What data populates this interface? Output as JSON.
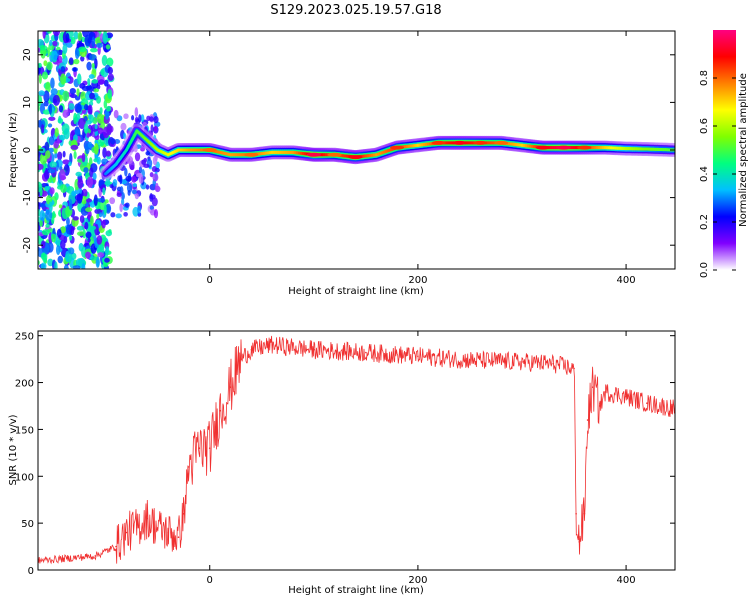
{
  "figure_title": "S129.2023.025.19.57.G18",
  "chart_data": [
    {
      "type": "heatmap",
      "title": "",
      "xlabel": "Height of straight line (km)",
      "ylabel": "Frequency (Hz)",
      "xlim": [
        -165,
        447
      ],
      "ylim": [
        -25,
        25
      ],
      "x_ticks": [
        0,
        200,
        400
      ],
      "y_ticks": [
        -20,
        -10,
        0,
        10,
        20
      ],
      "colorbar": {
        "label": "Normalized spectral amplitude",
        "range": [
          0,
          1
        ],
        "ticks": [
          0.0,
          0.2,
          0.4,
          0.6,
          0.8
        ],
        "colormap": [
          "#ffffff",
          "#8000ff",
          "#0000ff",
          "#00c0ff",
          "#00ff80",
          "#80ff00",
          "#ffff00",
          "#ff8000",
          "#ff0000",
          "#ff0080"
        ]
      },
      "ridge": {
        "x": [
          -100,
          -90,
          -80,
          -70,
          -60,
          -50,
          -40,
          -30,
          -20,
          0,
          20,
          40,
          60,
          80,
          100,
          120,
          140,
          160,
          180,
          200,
          220,
          240,
          260,
          280,
          300,
          320,
          340,
          360,
          380,
          400,
          420,
          447
        ],
        "frequency": [
          -5,
          -3,
          0,
          4,
          2,
          0,
          -1,
          0,
          0,
          0,
          -1,
          -1,
          -0.5,
          -0.5,
          -1,
          -1,
          -1.5,
          -1,
          0.5,
          1,
          1.5,
          1.5,
          1.5,
          1.5,
          1,
          0.5,
          0.5,
          0.5,
          0.5,
          0.3,
          0.2,
          0
        ],
        "amplitude": [
          0.3,
          0.35,
          0.4,
          0.5,
          0.55,
          0.6,
          0.65,
          0.7,
          0.75,
          0.8,
          0.75,
          0.8,
          0.7,
          0.75,
          0.95,
          0.8,
          0.9,
          0.75,
          0.85,
          0.7,
          0.85,
          0.9,
          0.85,
          0.8,
          0.7,
          0.9,
          0.95,
          0.85,
          0.7,
          0.6,
          0.55,
          0.5
        ]
      }
    },
    {
      "type": "line",
      "title": "",
      "xlabel": "Height of straight line (km)",
      "ylabel": "SNR (10 * v/v)",
      "xlim": [
        -165,
        447
      ],
      "ylim": [
        0,
        255
      ],
      "x_ticks": [
        0,
        200,
        400
      ],
      "y_ticks": [
        0,
        50,
        100,
        150,
        200,
        250
      ],
      "color": "#f03030",
      "series": [
        {
          "x": [
            -165,
            -140,
            -110,
            -90,
            -80,
            -70,
            -60,
            -50,
            -40,
            -30,
            -25,
            -20,
            -10,
            0,
            10,
            20,
            30,
            40,
            60,
            100,
            150,
            200,
            250,
            300,
            330,
            350,
            352,
            355,
            360,
            363,
            368,
            375,
            380,
            400,
            420,
            447
          ],
          "values": [
            10,
            12,
            15,
            25,
            40,
            45,
            55,
            45,
            40,
            35,
            60,
            110,
            130,
            130,
            170,
            195,
            225,
            235,
            240,
            235,
            232,
            228,
            224,
            222,
            220,
            215,
            60,
            30,
            60,
            160,
            195,
            175,
            190,
            185,
            178,
            172
          ]
        }
      ]
    }
  ]
}
